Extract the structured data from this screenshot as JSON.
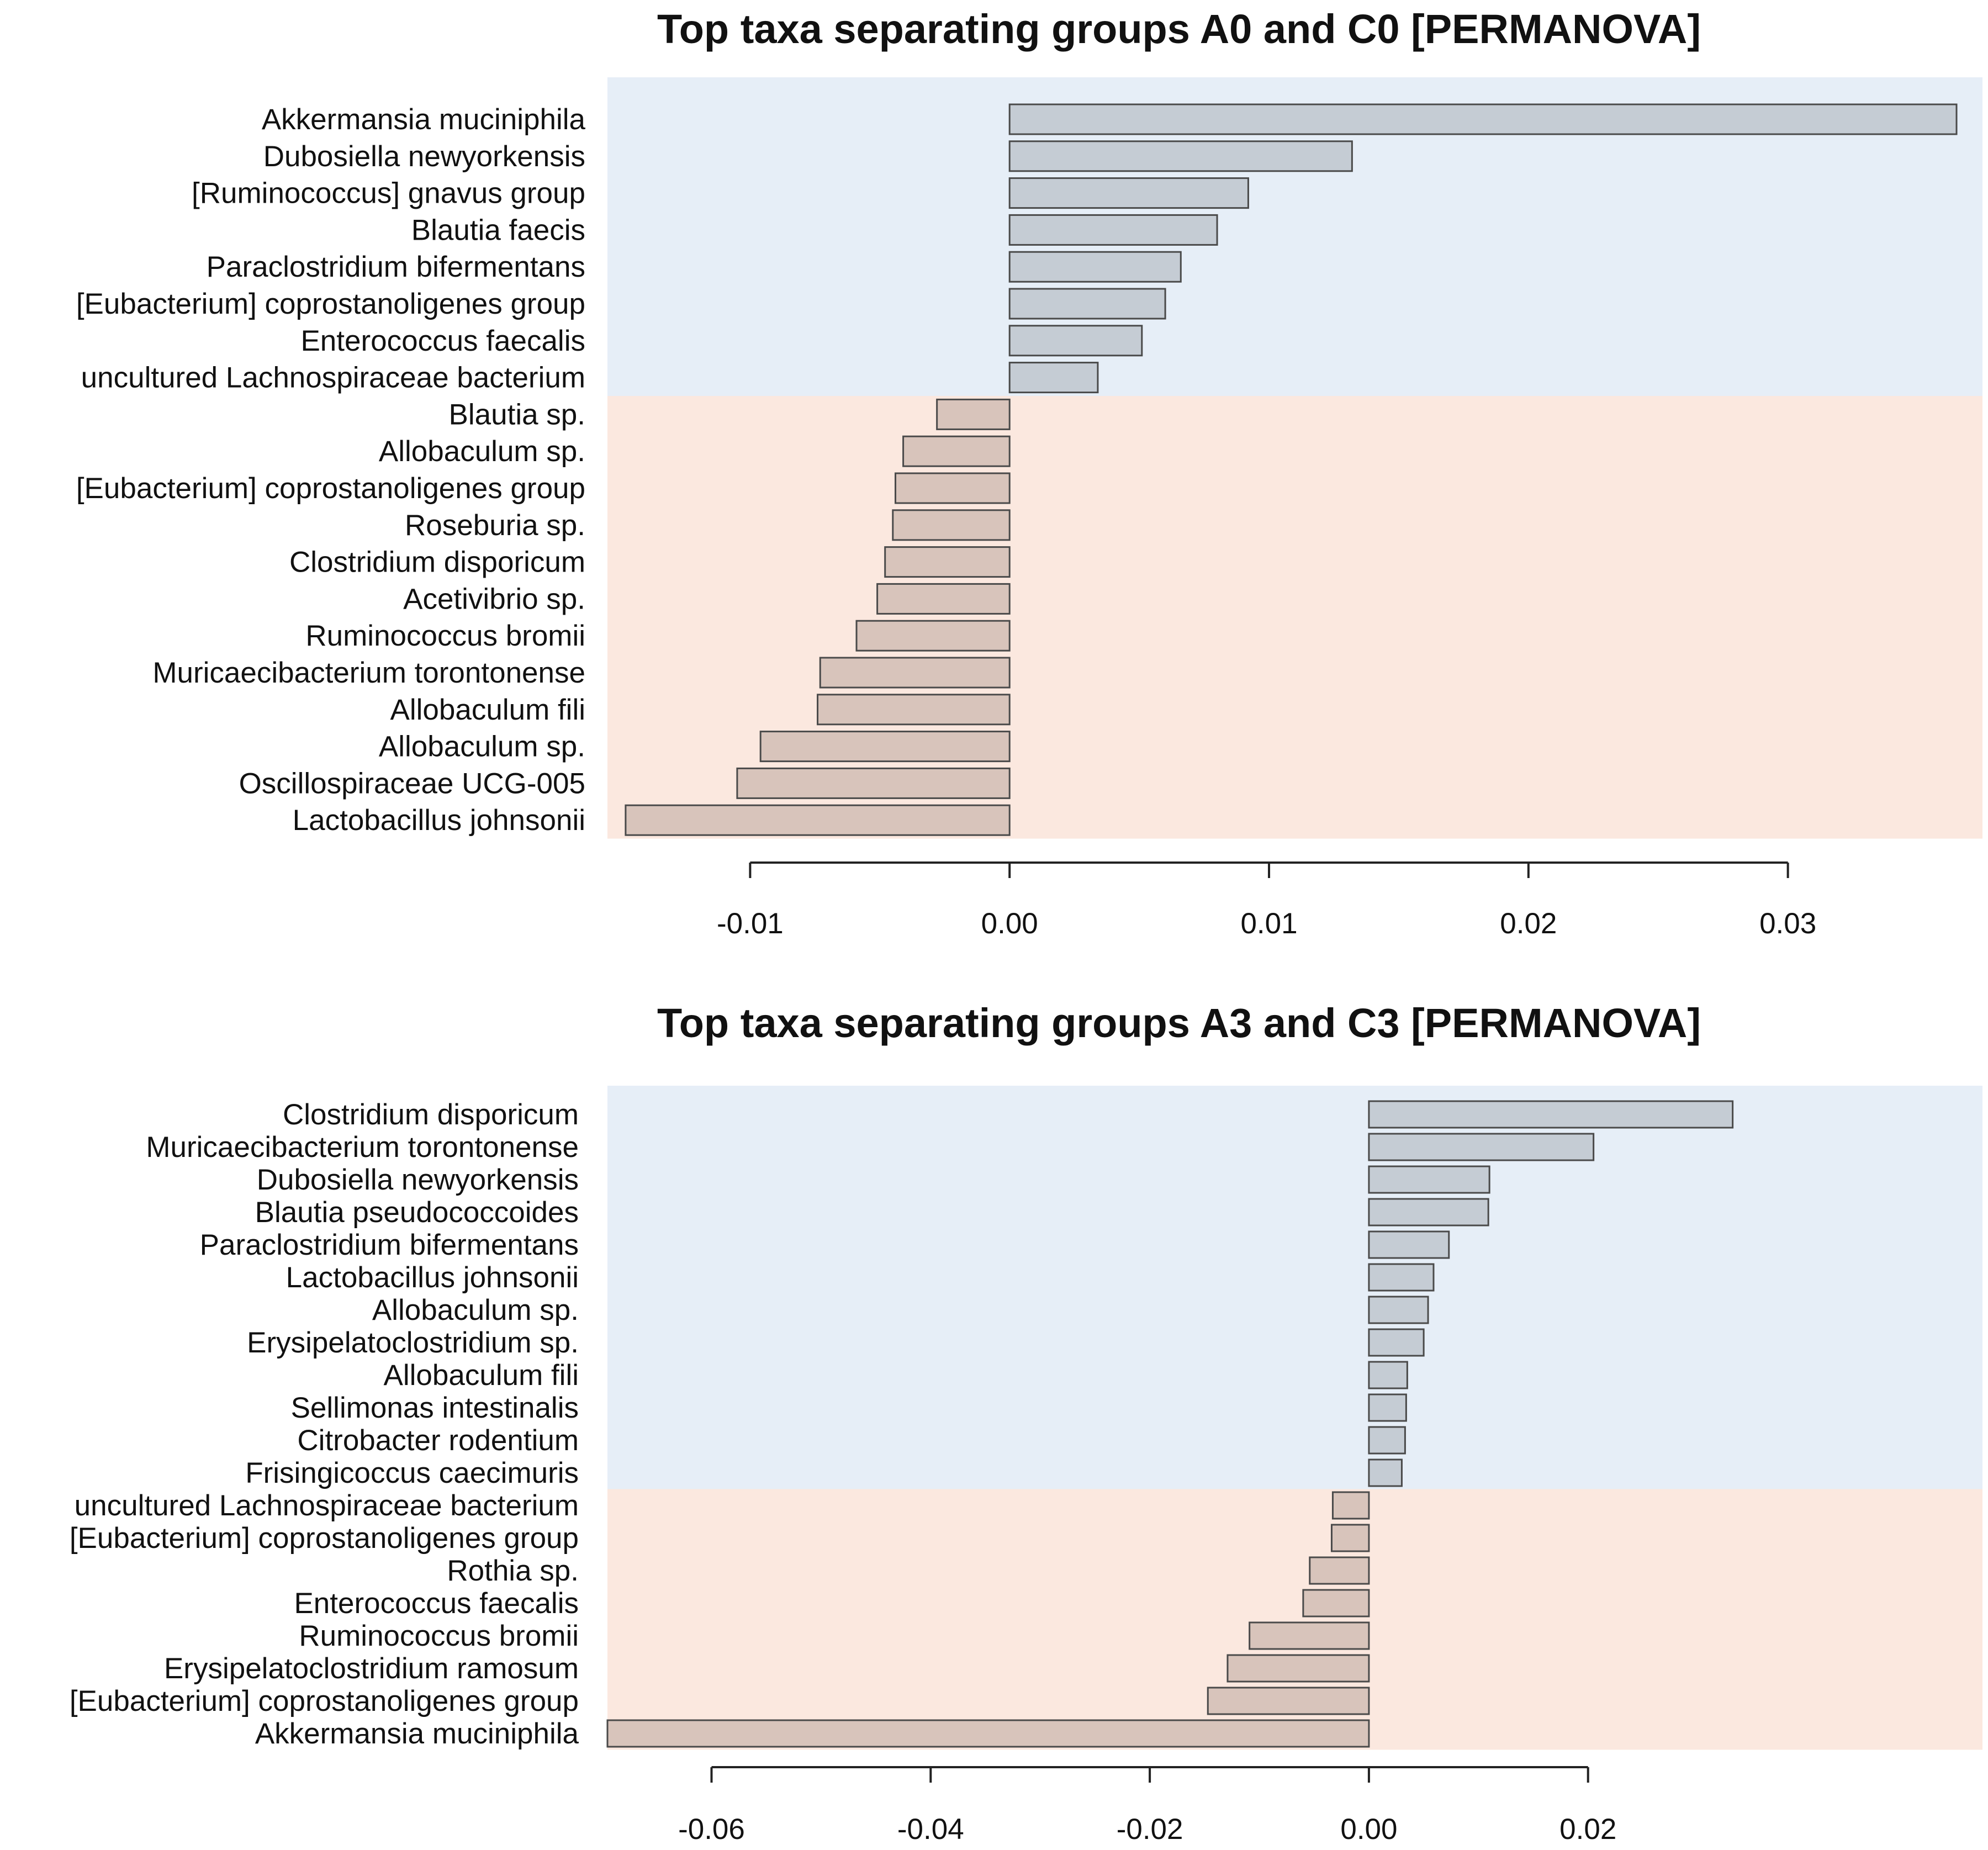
{
  "colors": {
    "positive_band": "#e6eef7",
    "negative_band": "#fbe8df",
    "positive_bar": "#c5ccd4",
    "negative_bar": "#d8c4bb",
    "bar_stroke": "#4a4a4a",
    "axis": "#222222"
  },
  "chart_data": [
    {
      "type": "bar",
      "orientation": "horizontal",
      "title": "Top taxa separating groups A0 and C0 [PERMANOVA]",
      "categories": [
        "Akkermansia muciniphila",
        "Dubosiella  newyorkensis",
        "[Ruminococcus] gnavus group",
        "Blautia faecis",
        "Paraclostridium bifermentans",
        "[Eubacterium] coprostanoligenes group",
        "Enterococcus faecalis",
        "uncultured Lachnospiraceae bacterium",
        "Blautia sp.",
        "Allobaculum sp.",
        "[Eubacterium] coprostanoligenes group",
        "Roseburia sp.",
        "Clostridium disporicum",
        "Acetivibrio sp.",
        "Ruminococcus bromii",
        "Muricaecibacterium torontonense",
        "Allobaculum fili",
        "Allobaculum sp.",
        "Oscillospiraceae UCG-005",
        "Lactobacillus johnsonii"
      ],
      "values": [
        0.0365,
        0.0132,
        0.0092,
        0.008,
        0.0066,
        0.006,
        0.0051,
        0.0034,
        -0.0028,
        -0.0041,
        -0.0044,
        -0.0045,
        -0.0048,
        -0.0051,
        -0.0059,
        -0.0073,
        -0.0074,
        -0.0096,
        -0.0105,
        -0.0148
      ],
      "xlim": [
        -0.0155,
        0.0375
      ],
      "xticks": [
        -0.01,
        0.0,
        0.01,
        0.02,
        0.03
      ],
      "xtick_labels": [
        "-0.01",
        "0.00",
        "0.01",
        "0.02",
        "0.03"
      ],
      "xlabel": "",
      "ylabel": "",
      "grid": false,
      "legend": "none"
    },
    {
      "type": "bar",
      "orientation": "horizontal",
      "title": "Top taxa separating groups A3 and C3 [PERMANOVA]",
      "categories": [
        "Clostridium disporicum",
        "Muricaecibacterium torontonense",
        "Dubosiella  newyorkensis",
        "Blautia pseudococcoides",
        "Paraclostridium bifermentans",
        "Lactobacillus johnsonii",
        "Allobaculum sp.",
        "Erysipelatoclostridium sp.",
        "Allobaculum fili",
        "Sellimonas intestinalis",
        "Citrobacter rodentium",
        "Frisingicoccus caecimuris",
        "uncultured  Lachnospiraceae bacterium",
        "[Eubacterium] coprostanoligenes group",
        "Rothia sp.",
        "Enterococcus faecalis",
        "Ruminococcus bromii",
        "Erysipelatoclostridium ramosum",
        "[Eubacterium] coprostanoligenes group",
        "Akkermansia muciniphila"
      ],
      "values": [
        0.0332,
        0.0205,
        0.011,
        0.0109,
        0.0073,
        0.0059,
        0.0054,
        0.005,
        0.0035,
        0.0034,
        0.0033,
        0.003,
        -0.0033,
        -0.0034,
        -0.0054,
        -0.006,
        -0.0109,
        -0.0129,
        -0.0147,
        -0.0695
      ],
      "xlim": [
        -0.0695,
        0.056
      ],
      "xticks": [
        -0.06,
        -0.04,
        -0.02,
        0.0,
        0.02
      ],
      "xtick_labels": [
        "-0.06",
        "-0.04",
        "-0.02",
        "0.00",
        "0.02"
      ],
      "xlabel": "",
      "ylabel": "",
      "grid": false,
      "legend": "none"
    }
  ]
}
